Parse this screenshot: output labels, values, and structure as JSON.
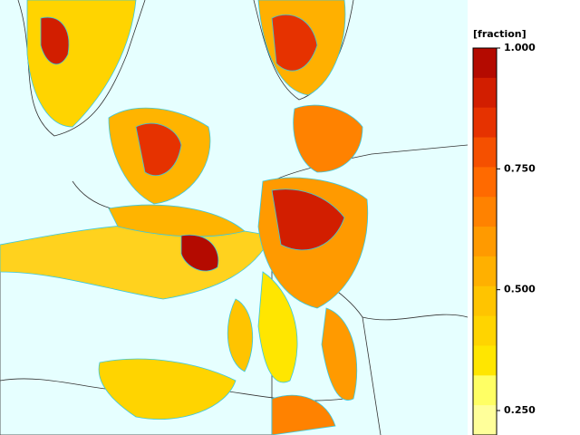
{
  "colorbar": {
    "title": "[fraction]",
    "ticks": [
      {
        "value": 1.0,
        "label": "1.000"
      },
      {
        "value": 0.75,
        "label": "0.750"
      },
      {
        "value": 0.5,
        "label": "0.500"
      },
      {
        "value": 0.25,
        "label": "0.250"
      }
    ],
    "colors": [
      "#b40a00",
      "#d21e00",
      "#e63200",
      "#f55000",
      "#ff6a00",
      "#ff8200",
      "#ff9a00",
      "#ffb000",
      "#ffc400",
      "#ffd400",
      "#ffe600",
      "#ffff64",
      "#ffff9a"
    ]
  }
}
